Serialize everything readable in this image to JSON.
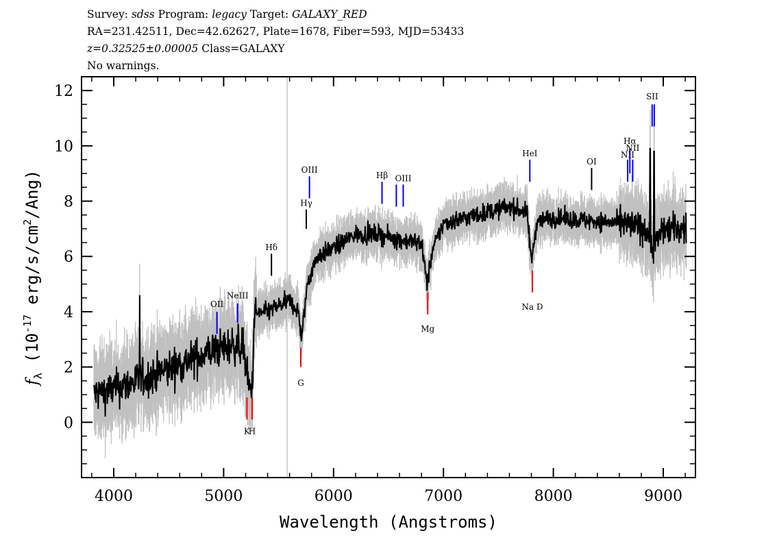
{
  "header": {
    "line1": {
      "survey_label": "Survey:",
      "survey": "sdss",
      "program_label": "Program:",
      "program": "legacy",
      "target_label": "Target:",
      "target": "GALAXY_RED"
    },
    "line2": "RA=231.42511, Dec=42.62627, Plate=1678, Fiber=593, MJD=53433",
    "line3": {
      "redshift": "z=0.32525±0.00005",
      "class": "Class=GALAXY"
    },
    "line4": "No warnings."
  },
  "chart_data": {
    "type": "line",
    "xlabel": "Wavelength (Angstroms)",
    "ylabel": "f_λ (10^-17 erg/s/cm^2/Ang)",
    "xlim": [
      3707,
      9293
    ],
    "ylim": [
      -2.0,
      12.5
    ],
    "xticks": [
      "4000",
      "5000",
      "6000",
      "7000",
      "8000",
      "9000"
    ],
    "yticks": [
      "0",
      "2",
      "4",
      "6",
      "8",
      "10",
      "12"
    ],
    "grid": false,
    "colors": {
      "flux": "#000000",
      "error_band": "#c0c0c0",
      "emission": "#0000ff",
      "absorption": "#ff0000",
      "other": "#000000"
    },
    "flux_continuum": {
      "x": [
        3820,
        4000,
        4300,
        4600,
        4900,
        5100,
        5180,
        5230,
        5260,
        5280,
        5400,
        5600,
        5680,
        5710,
        5760,
        5850,
        6000,
        6200,
        6400,
        6600,
        6800,
        6850,
        6900,
        7000,
        7300,
        7600,
        7760,
        7800,
        7850,
        8000,
        8300,
        8600,
        8850,
        8900,
        9000,
        9200
      ],
      "y": [
        1.0,
        1.2,
        1.6,
        2.1,
        2.6,
        2.8,
        2.7,
        1.2,
        1.2,
        3.9,
        4.0,
        4.4,
        4.0,
        3.0,
        5.0,
        6.0,
        6.3,
        6.8,
        6.8,
        6.6,
        6.5,
        5.0,
        6.2,
        7.2,
        7.5,
        7.8,
        7.6,
        5.8,
        7.3,
        7.4,
        7.3,
        7.2,
        7.0,
        6.2,
        7.0,
        7.0
      ]
    },
    "spectral_lines": [
      {
        "name": "OII",
        "wavelength": 4939,
        "kind": "emission",
        "y": [
          3.2,
          4.0
        ],
        "label_y": 4.3
      },
      {
        "name": "NeIII",
        "wavelength": 5127,
        "kind": "emission",
        "y": [
          3.6,
          4.3
        ],
        "label_y": 4.6
      },
      {
        "name": "K",
        "wavelength": 5212,
        "kind": "absorption",
        "y": [
          0.1,
          0.9
        ],
        "label_y": -0.3
      },
      {
        "name": "H",
        "wavelength": 5259,
        "kind": "absorption",
        "y": [
          0.1,
          0.9
        ],
        "label_y": -0.3
      },
      {
        "name": "Hδ",
        "wavelength": 5435,
        "kind": "other",
        "y": [
          5.3,
          6.1
        ],
        "label_y": 6.35
      },
      {
        "name": "G",
        "wavelength": 5702,
        "kind": "absorption",
        "y": [
          2.0,
          2.7
        ],
        "label_y": 1.45
      },
      {
        "name": "Hγ",
        "wavelength": 5752,
        "kind": "other",
        "y": [
          7.0,
          7.7
        ],
        "label_y": 7.95
      },
      {
        "name": "OIII",
        "wavelength": 5781,
        "kind": "emission",
        "y": [
          8.1,
          8.9
        ],
        "label_y": 9.15
      },
      {
        "name": "Hβ",
        "wavelength": 6441,
        "kind": "emission",
        "y": [
          7.9,
          8.7
        ],
        "label_y": 8.95
      },
      {
        "name": "OIII",
        "wavelength": 6571,
        "kind": "emission",
        "y": [
          7.8,
          8.6
        ],
        "label_y": -99
      },
      {
        "name": "OIII",
        "wavelength": 6634,
        "kind": "emission",
        "y": [
          7.8,
          8.6
        ],
        "label_y": 8.85
      },
      {
        "name": "Mg",
        "wavelength": 6857,
        "kind": "absorption",
        "y": [
          3.9,
          4.7
        ],
        "label_y": 3.4
      },
      {
        "name": "HeI",
        "wavelength": 7786,
        "kind": "emission",
        "y": [
          8.7,
          9.5
        ],
        "label_y": 9.75
      },
      {
        "name": "Na D",
        "wavelength": 7809,
        "kind": "absorption",
        "y": [
          4.7,
          5.5
        ],
        "label_y": 4.2
      },
      {
        "name": "OI",
        "wavelength": 8348,
        "kind": "other",
        "y": [
          8.4,
          9.2
        ],
        "label_y": 9.45
      },
      {
        "name": "NII",
        "wavelength": 8676,
        "kind": "emission",
        "y": [
          8.7,
          9.5
        ],
        "label_y": 9.7
      },
      {
        "name": "Hα",
        "wavelength": 8696,
        "kind": "emission",
        "y": [
          9.0,
          9.9
        ],
        "label_y": 10.2
      },
      {
        "name": "NII",
        "wavelength": 8722,
        "kind": "emission",
        "y": [
          8.7,
          9.5
        ],
        "label_y": 9.95
      },
      {
        "name": "SII",
        "wavelength": 8899,
        "kind": "emission",
        "y": [
          10.7,
          11.5
        ],
        "label_y": 11.8
      },
      {
        "name": "SII",
        "wavelength": 8918,
        "kind": "emission",
        "y": [
          10.7,
          11.5
        ],
        "label_y": -99
      }
    ]
  }
}
